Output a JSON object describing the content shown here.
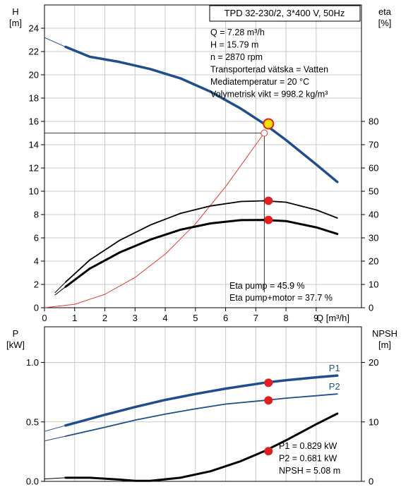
{
  "chart_data": [
    {
      "type": "line",
      "title": "TPD 32-230/2, 3*400 V, 50Hz",
      "xlabel": "Q [m³/h]",
      "ylabel_left": "H\n[m]",
      "ylabel_right": "eta\n[%]",
      "xlim": [
        0,
        10.5
      ],
      "ylim_left": [
        0,
        26
      ],
      "ylim_right": [
        0,
        130
      ],
      "x_ticks": [
        0,
        1,
        2,
        3,
        4,
        5,
        6,
        7,
        8,
        9
      ],
      "y_ticks_left": [
        0,
        2,
        4,
        6,
        8,
        10,
        12,
        14,
        16,
        18,
        20,
        22,
        24
      ],
      "y_ticks_right": [
        0,
        10,
        20,
        30,
        40,
        50,
        60,
        70,
        80
      ],
      "grid": true,
      "info": [
        "Q = 7.28 m³/h",
        "H = 15.79 m",
        "n = 2870 rpm",
        "Transporterad vätska = Vatten",
        "Mediatemperatur = 20 °C",
        "Volymetrisk vikt = 998.2 kg/m³"
      ],
      "eta_text": [
        "Eta pump = 45.9 %",
        "Eta pump+motor = 37.7 %"
      ],
      "operating_point": {
        "q": 7.28,
        "h": 15.79,
        "eta_pump": 45.9,
        "eta_total": 37.7,
        "h_system": 15.0
      },
      "series": [
        {
          "axis": "left",
          "style": "head-thin",
          "x": [
            0.0,
            0.7
          ],
          "y": [
            23.2,
            22.4
          ]
        },
        {
          "axis": "left",
          "style": "head",
          "x": [
            0.7,
            1.5,
            2.5,
            3.5,
            4.5,
            5.5,
            6.5,
            7.28,
            8.0,
            9.0,
            9.7
          ],
          "y": [
            22.4,
            21.55,
            21.1,
            20.5,
            19.7,
            18.55,
            17.1,
            15.79,
            14.4,
            12.3,
            10.8
          ]
        },
        {
          "axis": "left",
          "style": "system",
          "x": [
            0,
            1,
            2,
            3,
            4,
            5,
            6,
            6.5,
            7.0,
            7.28
          ],
          "y": [
            0,
            0.3,
            1.15,
            2.6,
            4.6,
            7.2,
            10.4,
            12.2,
            14.0,
            15.0
          ]
        },
        {
          "axis": "right",
          "style": "eta-thin",
          "x": [
            0.35,
            0.7
          ],
          "y": [
            6.5,
            11.0
          ]
        },
        {
          "axis": "right",
          "style": "eta",
          "x": [
            0.7,
            1.5,
            2.5,
            3.5,
            4.5,
            5.5,
            6.5,
            7.28,
            8.0,
            9.0,
            9.7
          ],
          "y": [
            11.0,
            20.5,
            29.0,
            35.5,
            40.5,
            43.7,
            45.6,
            45.9,
            45.3,
            42.0,
            38.5
          ]
        },
        {
          "axis": "right",
          "style": "eta-total-thin",
          "x": [
            0.35,
            0.7
          ],
          "y": [
            5.5,
            9.0
          ]
        },
        {
          "axis": "right",
          "style": "eta-total",
          "x": [
            0.7,
            1.5,
            2.5,
            3.5,
            4.5,
            5.5,
            6.5,
            7.28,
            8.0,
            9.0,
            9.7
          ],
          "y": [
            9.0,
            16.8,
            23.8,
            29.2,
            33.5,
            36.2,
            37.6,
            37.7,
            37.2,
            34.5,
            31.7
          ]
        }
      ]
    },
    {
      "type": "line",
      "ylabel_left": "P\n[kW]",
      "ylabel_right": "NPSH\n[m]",
      "xlim": [
        0,
        10.5
      ],
      "ylim_left": [
        0,
        1.3
      ],
      "ylim_right": [
        0,
        26
      ],
      "y_ticks_left": [
        0.0,
        0.5,
        1.0
      ],
      "y_tick_labels_left": [
        "0.0",
        "0.5",
        "1.0"
      ],
      "y_ticks_right": [
        0,
        10,
        20
      ],
      "grid": true,
      "info": [
        "P1 = 0.829 kW",
        "P2 = 0.681 kW",
        "NPSH = 5.08 m"
      ],
      "operating_point": {
        "q": 7.28,
        "p1": 0.829,
        "p2": 0.681,
        "npsh": 5.08
      },
      "series": [
        {
          "name": "P1",
          "axis": "left",
          "style": "p1",
          "x": [
            0.7,
            2,
            3,
            4,
            5,
            6,
            7.28,
            8,
            9,
            9.7
          ],
          "y": [
            0.47,
            0.56,
            0.625,
            0.685,
            0.735,
            0.78,
            0.829,
            0.85,
            0.875,
            0.89
          ]
        },
        {
          "axis": "left",
          "style": "p1-thin",
          "x": [
            0,
            0.7
          ],
          "y": [
            0.42,
            0.47
          ]
        },
        {
          "name": "P2",
          "axis": "left",
          "style": "p2",
          "x": [
            0.7,
            2,
            3,
            4,
            5,
            6,
            7.28,
            8,
            9,
            9.7
          ],
          "y": [
            0.38,
            0.455,
            0.515,
            0.565,
            0.61,
            0.65,
            0.681,
            0.7,
            0.72,
            0.735
          ]
        },
        {
          "axis": "left",
          "style": "p2-thin",
          "x": [
            0,
            0.7
          ],
          "y": [
            0.34,
            0.38
          ]
        },
        {
          "axis": "right",
          "style": "npsh",
          "x": [
            0.7,
            1.5,
            2.5,
            3.0,
            3.5,
            4.5,
            5.5,
            6.5,
            7.28,
            8.0,
            9.0,
            9.7
          ],
          "y": [
            0.6,
            0.6,
            0.3,
            0.1,
            0.1,
            0.6,
            1.7,
            3.4,
            5.08,
            6.9,
            9.6,
            11.4
          ]
        },
        {
          "axis": "right",
          "style": "npsh-thin",
          "x": [
            0,
            0.7
          ],
          "y": [
            0.4,
            0.6
          ]
        }
      ]
    }
  ]
}
